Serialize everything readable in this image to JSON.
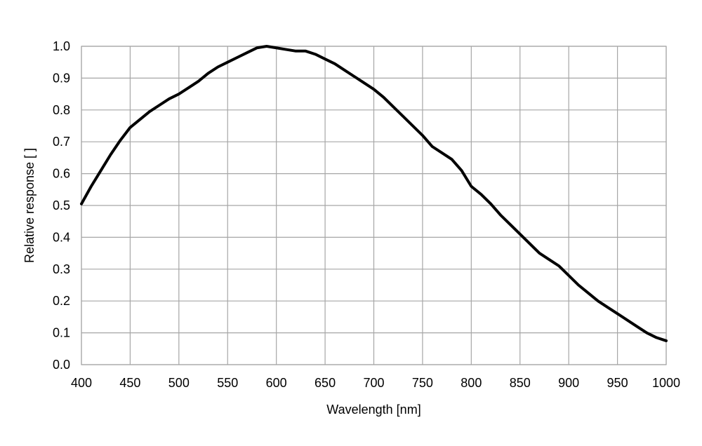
{
  "chart_data": {
    "type": "line",
    "title": "",
    "xlabel": "Wavelength [nm]",
    "ylabel": "Relative response [ ]",
    "xlim": [
      400,
      1000
    ],
    "ylim": [
      0.0,
      1.0
    ],
    "xticks": [
      400,
      450,
      500,
      550,
      600,
      650,
      700,
      750,
      800,
      850,
      900,
      950,
      1000
    ],
    "yticks": [
      0.0,
      0.1,
      0.2,
      0.3,
      0.4,
      0.5,
      0.6,
      0.7,
      0.8,
      0.9,
      1.0
    ],
    "xtick_labels": [
      "400",
      "450",
      "500",
      "550",
      "600",
      "650",
      "700",
      "750",
      "800",
      "850",
      "900",
      "950",
      "1000"
    ],
    "ytick_labels": [
      "0.0",
      "0.1",
      "0.2",
      "0.3",
      "0.4",
      "0.5",
      "0.6",
      "0.7",
      "0.8",
      "0.9",
      "1.0"
    ],
    "grid": true,
    "legend": "none",
    "series": [
      {
        "name": "",
        "color": "#000000",
        "x": [
          400,
          410,
          420,
          430,
          440,
          450,
          460,
          470,
          480,
          490,
          500,
          510,
          520,
          530,
          540,
          550,
          560,
          570,
          580,
          590,
          600,
          610,
          620,
          630,
          640,
          650,
          660,
          670,
          680,
          690,
          700,
          710,
          720,
          730,
          740,
          750,
          760,
          770,
          780,
          790,
          800,
          810,
          820,
          830,
          840,
          850,
          860,
          870,
          880,
          890,
          900,
          910,
          920,
          930,
          940,
          950,
          960,
          970,
          980,
          990,
          1000
        ],
        "y": [
          0.505,
          0.56,
          0.61,
          0.66,
          0.705,
          0.745,
          0.77,
          0.795,
          0.815,
          0.835,
          0.85,
          0.87,
          0.89,
          0.915,
          0.935,
          0.95,
          0.965,
          0.98,
          0.995,
          1.0,
          0.995,
          0.99,
          0.985,
          0.985,
          0.975,
          0.96,
          0.945,
          0.925,
          0.905,
          0.885,
          0.865,
          0.84,
          0.81,
          0.78,
          0.75,
          0.72,
          0.685,
          0.665,
          0.645,
          0.61,
          0.56,
          0.535,
          0.505,
          0.47,
          0.44,
          0.41,
          0.38,
          0.35,
          0.33,
          0.31,
          0.28,
          0.25,
          0.225,
          0.2,
          0.18,
          0.16,
          0.14,
          0.12,
          0.1,
          0.085,
          0.075
        ]
      }
    ]
  }
}
